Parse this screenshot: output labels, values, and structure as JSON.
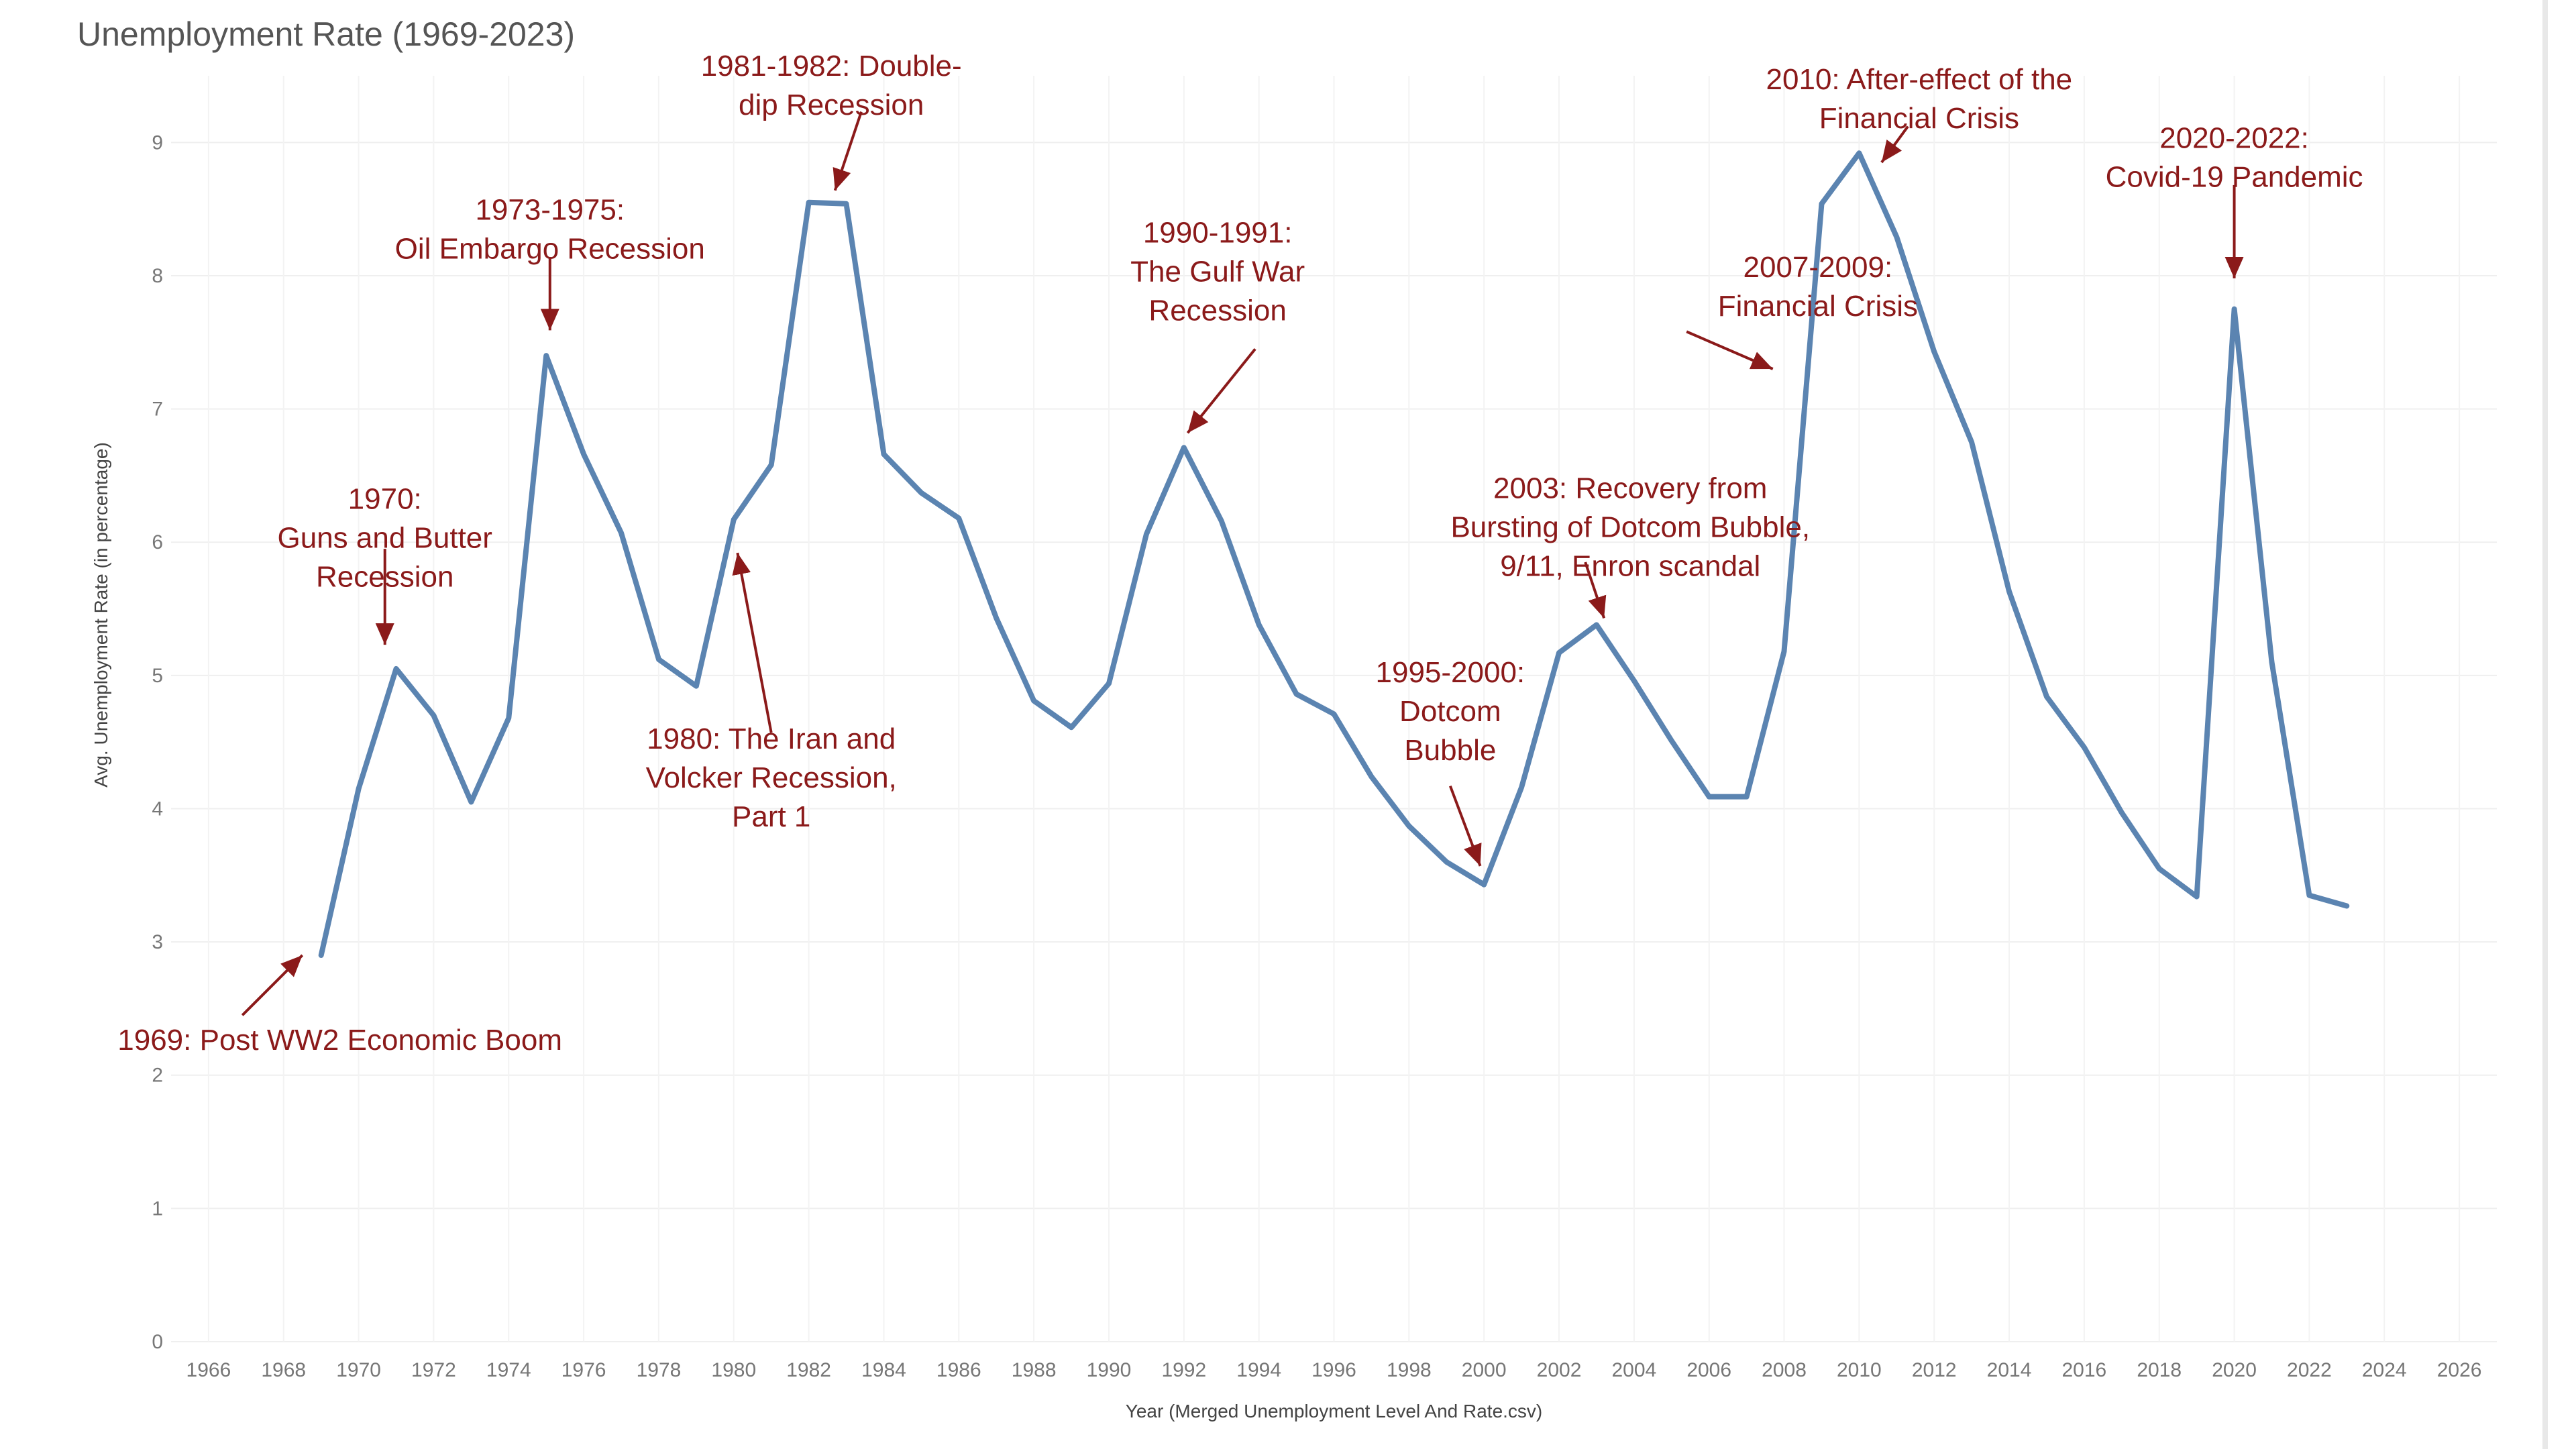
{
  "title": "Unemployment Rate (1969-2023)",
  "chart_data": {
    "type": "line",
    "title": "Unemployment Rate (1969-2023)",
    "xlabel": "Year (Merged Unemployment Level And Rate.csv)",
    "ylabel": "Avg. Unemployment Rate (in percentage)",
    "xlim": [
      1965,
      2027
    ],
    "ylim": [
      0,
      9.5
    ],
    "x_ticks": [
      1966,
      1968,
      1970,
      1972,
      1974,
      1976,
      1978,
      1980,
      1982,
      1984,
      1986,
      1988,
      1990,
      1992,
      1994,
      1996,
      1998,
      2000,
      2002,
      2004,
      2006,
      2008,
      2010,
      2012,
      2014,
      2016,
      2018,
      2020,
      2022,
      2024,
      2026
    ],
    "y_ticks": [
      0,
      1,
      2,
      3,
      4,
      5,
      6,
      7,
      8,
      9
    ],
    "grid": true,
    "line_color": "#5b84b1",
    "annotation_color": "#8b1a1a",
    "x": [
      1969,
      1970,
      1971,
      1972,
      1973,
      1974,
      1975,
      1976,
      1977,
      1978,
      1979,
      1980,
      1981,
      1982,
      1983,
      1984,
      1985,
      1986,
      1987,
      1988,
      1989,
      1990,
      1991,
      1992,
      1993,
      1994,
      1995,
      1996,
      1997,
      1998,
      1999,
      2000,
      2001,
      2002,
      2003,
      2004,
      2005,
      2006,
      2007,
      2008,
      2009,
      2010,
      2011,
      2012,
      2013,
      2014,
      2015,
      2016,
      2017,
      2018,
      2019,
      2020,
      2021,
      2022,
      2023
    ],
    "y": [
      2.9,
      4.15,
      5.05,
      4.7,
      4.05,
      4.68,
      7.4,
      6.66,
      6.07,
      5.12,
      4.92,
      6.17,
      6.58,
      8.55,
      8.54,
      6.66,
      6.37,
      6.18,
      5.43,
      4.81,
      4.61,
      4.94,
      6.06,
      6.71,
      6.16,
      5.38,
      4.86,
      4.71,
      4.24,
      3.87,
      3.6,
      3.43,
      4.16,
      5.17,
      5.38,
      4.96,
      4.51,
      4.09,
      4.09,
      5.18,
      8.54,
      8.92,
      8.29,
      7.43,
      6.75,
      5.63,
      4.84,
      4.46,
      3.97,
      3.55,
      3.34,
      7.75,
      5.1,
      3.35,
      3.27
    ],
    "annotations": [
      {
        "lines": [
          "1969: Post WW2 Economic Boom"
        ],
        "cx": 1969.5,
        "cy": 2.19,
        "arrow": [
          [
            1966.9,
            2.45
          ],
          [
            1968.5,
            2.9
          ]
        ]
      },
      {
        "lines": [
          "1970:",
          "Guns and Butter",
          "Recession"
        ],
        "cx": 1970.7,
        "cy": 6.25,
        "arrow": [
          [
            1970.7,
            5.95
          ],
          [
            1970.7,
            5.23
          ]
        ]
      },
      {
        "lines": [
          "1973-1975:",
          "Oil Embargo Recession"
        ],
        "cx": 1975.1,
        "cy": 8.42,
        "arrow": [
          [
            1975.1,
            8.14
          ],
          [
            1975.1,
            7.59
          ]
        ]
      },
      {
        "lines": [
          "1980: The Iran and",
          "Volcker Recession,",
          "Part 1"
        ],
        "cx": 1981.0,
        "cy": 4.45,
        "arrow": [
          [
            1981.0,
            4.57
          ],
          [
            1980.1,
            5.92
          ]
        ]
      },
      {
        "lines": [
          "1981-1982: Double-",
          "dip Recession"
        ],
        "cx": 1982.6,
        "cy": 9.5,
        "arrow": [
          [
            1983.4,
            9.23
          ],
          [
            1982.7,
            8.64
          ]
        ]
      },
      {
        "lines": [
          "1990-1991:",
          "The Gulf War",
          "Recession"
        ],
        "cx": 1992.9,
        "cy": 8.25,
        "arrow": [
          [
            1993.9,
            7.45
          ],
          [
            1992.1,
            6.82
          ]
        ]
      },
      {
        "lines": [
          "1995-2000:",
          "Dotcom",
          "Bubble"
        ],
        "cx": 1999.1,
        "cy": 4.95,
        "arrow": [
          [
            1999.1,
            4.17
          ],
          [
            1999.9,
            3.57
          ]
        ]
      },
      {
        "lines": [
          "2003: Recovery from",
          "Bursting of Dotcom Bubble,",
          "9/11, Enron scandal"
        ],
        "cx": 2003.9,
        "cy": 6.33,
        "arrow": [
          [
            2002.7,
            5.85
          ],
          [
            2003.2,
            5.43
          ]
        ]
      },
      {
        "lines": [
          "2007-2009:",
          "Financial Crisis"
        ],
        "cx": 2008.9,
        "cy": 7.99,
        "arrow": [
          [
            2005.4,
            7.58
          ],
          [
            2007.7,
            7.3
          ]
        ]
      },
      {
        "lines": [
          "2010: After-effect of the",
          "Financial Crisis"
        ],
        "cx": 2011.6,
        "cy": 9.4,
        "arrow": [
          [
            2011.3,
            9.12
          ],
          [
            2010.6,
            8.85
          ]
        ]
      },
      {
        "lines": [
          "2020-2022:",
          "Covid-19 Pandemic"
        ],
        "cx": 2020.0,
        "cy": 8.96,
        "arrow": [
          [
            2020.0,
            8.68
          ],
          [
            2020.0,
            7.98
          ]
        ]
      }
    ]
  }
}
